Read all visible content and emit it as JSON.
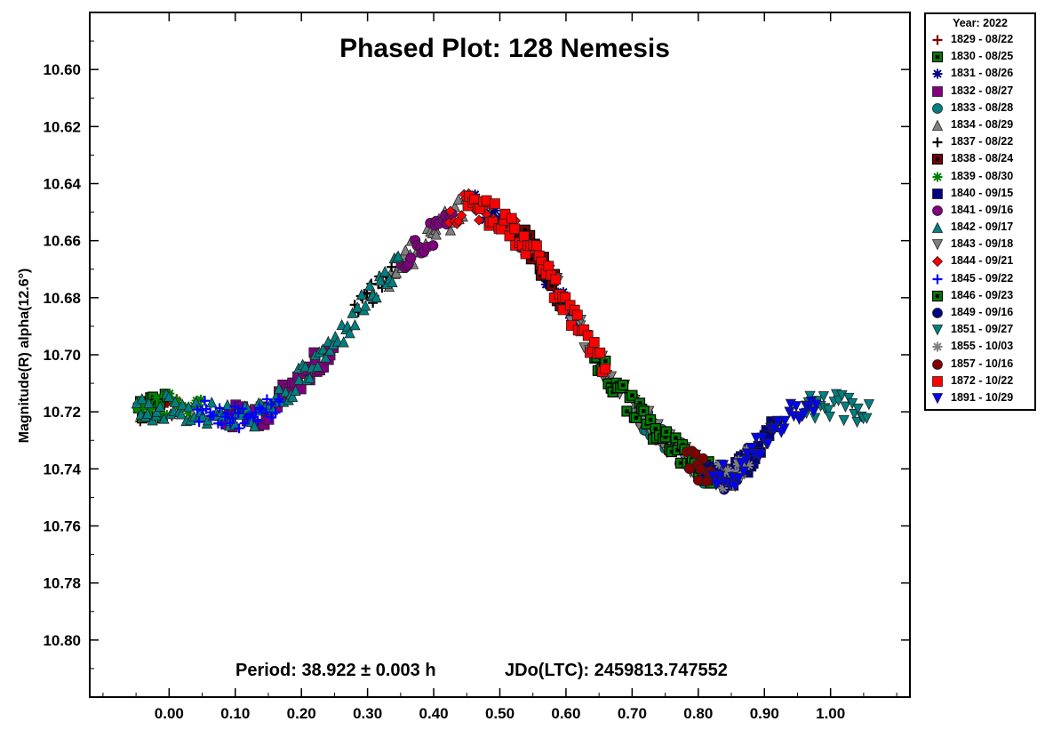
{
  "chart_data": {
    "type": "scatter",
    "title": "Phased Plot: 128 Nemesis",
    "ylabel": "Magnitude(R) alpha(12.6°)",
    "xlabel": "",
    "xlim": [
      -0.12,
      1.12
    ],
    "ylim": [
      10.82,
      10.58
    ],
    "y_inverted": true,
    "x_ticks": [
      "0.00",
      "0.10",
      "0.20",
      "0.30",
      "0.40",
      "0.50",
      "0.60",
      "0.70",
      "0.80",
      "0.90",
      "1.00"
    ],
    "y_ticks": [
      "10.60",
      "10.62",
      "10.64",
      "10.66",
      "10.68",
      "10.70",
      "10.72",
      "10.74",
      "10.76",
      "10.78",
      "10.80"
    ],
    "grid": false,
    "annotation_period": "Period: 38.922 ± 0.003 h",
    "annotation_epoch": "JDo(LTC): 2459813.747552",
    "legend_title": "Year: 2022",
    "legend_placement": "right-outside",
    "series": [
      {
        "name": "1829 - 08/22",
        "color": "#800000",
        "marker": "plus",
        "x_range": [
          -0.05,
          0.02
        ]
      },
      {
        "name": "1830 - 08/25",
        "color": "#008000",
        "marker": "square-outline",
        "x_range": [
          -0.05,
          0.0
        ]
      },
      {
        "name": "1831 - 08/26",
        "color": "#000080",
        "marker": "asterisk",
        "x_range": [
          0.46,
          0.62
        ]
      },
      {
        "name": "1832 - 08/27",
        "color": "#800080",
        "marker": "square",
        "x_range": [
          0.08,
          0.25
        ]
      },
      {
        "name": "1833 - 08/28",
        "color": "#008080",
        "marker": "circle",
        "x_range": [
          0.7,
          0.82
        ]
      },
      {
        "name": "1834 - 08/29",
        "color": "#808080",
        "marker": "triangle-up",
        "x_range": [
          0.33,
          0.45
        ]
      },
      {
        "name": "1837 - 08/22",
        "color": "#000000",
        "marker": "plus",
        "x_range": [
          0.28,
          0.34
        ]
      },
      {
        "name": "1838 - 08/24",
        "color": "#800000",
        "marker": "square-outline",
        "x_range": [
          0.53,
          0.6
        ]
      },
      {
        "name": "1839 - 08/30",
        "color": "#008000",
        "marker": "asterisk",
        "x_range": [
          -0.05,
          0.05
        ]
      },
      {
        "name": "1840 - 09/15",
        "color": "#000080",
        "marker": "square",
        "x_range": [
          0.82,
          0.92
        ]
      },
      {
        "name": "1841 - 09/16",
        "color": "#800080",
        "marker": "circle",
        "x_range": [
          0.35,
          0.43
        ]
      },
      {
        "name": "1842 - 09/17",
        "color": "#008080",
        "marker": "triangle-up",
        "x_range": [
          -0.05,
          0.35
        ]
      },
      {
        "name": "1843 - 09/18",
        "color": "#808080",
        "marker": "triangle-down",
        "x_range": [
          0.58,
          0.8
        ]
      },
      {
        "name": "1844 - 09/21",
        "color": "#ff0000",
        "marker": "diamond",
        "x_range": [
          0.42,
          0.55
        ]
      },
      {
        "name": "1845 - 09/22",
        "color": "#0000ff",
        "marker": "plus",
        "x_range": [
          0.04,
          0.17
        ]
      },
      {
        "name": "1846 - 09/23",
        "color": "#008000",
        "marker": "square-outline",
        "x_range": [
          0.64,
          0.82
        ]
      },
      {
        "name": "1849 - 09/16",
        "color": "#000080",
        "marker": "circle",
        "x_range": [
          0.8,
          0.88
        ]
      },
      {
        "name": "1851 - 09/27",
        "color": "#008080",
        "marker": "triangle-down",
        "x_range": [
          0.96,
          1.06
        ]
      },
      {
        "name": "1855 - 10/03",
        "color": "#808080",
        "marker": "asterisk",
        "x_range": [
          0.83,
          0.88
        ]
      },
      {
        "name": "1857 - 10/16",
        "color": "#800000",
        "marker": "circle",
        "x_range": [
          0.78,
          0.82
        ]
      },
      {
        "name": "1872 - 10/22",
        "color": "#ff0000",
        "marker": "square",
        "x_range": [
          0.45,
          0.66
        ]
      },
      {
        "name": "1891 - 10/29",
        "color": "#0000ff",
        "marker": "triangle-down",
        "x_range": [
          0.82,
          0.98
        ]
      }
    ],
    "lightcurve_mean": [
      [
        -0.05,
        10.719
      ],
      [
        0.0,
        10.718
      ],
      [
        0.05,
        10.72
      ],
      [
        0.1,
        10.722
      ],
      [
        0.15,
        10.72
      ],
      [
        0.2,
        10.708
      ],
      [
        0.25,
        10.696
      ],
      [
        0.3,
        10.68
      ],
      [
        0.35,
        10.668
      ],
      [
        0.4,
        10.657
      ],
      [
        0.45,
        10.647
      ],
      [
        0.5,
        10.652
      ],
      [
        0.55,
        10.663
      ],
      [
        0.6,
        10.683
      ],
      [
        0.65,
        10.703
      ],
      [
        0.7,
        10.718
      ],
      [
        0.75,
        10.73
      ],
      [
        0.8,
        10.74
      ],
      [
        0.85,
        10.744
      ],
      [
        0.9,
        10.73
      ],
      [
        0.95,
        10.719
      ],
      [
        1.0,
        10.718
      ],
      [
        1.05,
        10.72
      ]
    ]
  }
}
